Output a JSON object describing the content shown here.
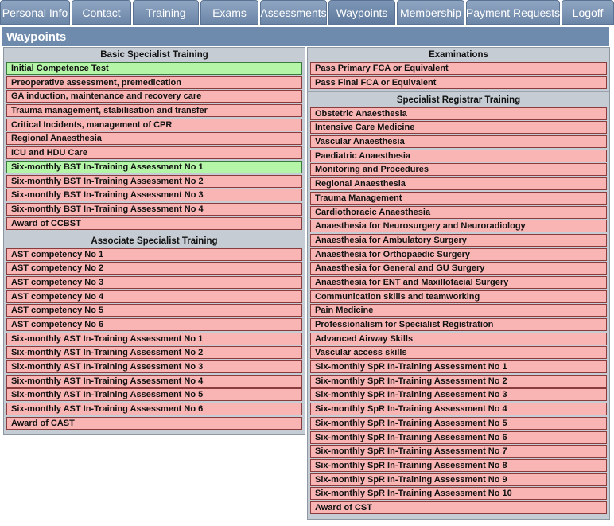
{
  "nav": {
    "tabs": [
      {
        "label": "Personal Info",
        "width": 88,
        "name": "tab-personal-info"
      },
      {
        "label": "Contact",
        "width": 75,
        "name": "tab-contact"
      },
      {
        "label": "Training",
        "width": 83,
        "name": "tab-training"
      },
      {
        "label": "Exams",
        "width": 73,
        "name": "tab-exams"
      },
      {
        "label": "Assessments",
        "width": 84,
        "name": "tab-assessments"
      },
      {
        "label": "Waypoints",
        "width": 84,
        "name": "tab-waypoints",
        "active": true
      },
      {
        "label": "Membership",
        "width": 85,
        "name": "tab-membership"
      },
      {
        "label": "Payment Requests",
        "width": 118,
        "name": "tab-payment-requests"
      },
      {
        "label": "Logoff",
        "width": 66,
        "name": "tab-logoff"
      }
    ]
  },
  "page_title": "Waypoints",
  "left": {
    "sections": [
      {
        "title": "Basic Specialist Training",
        "items": [
          {
            "label": "Initial Competence Test",
            "done": true
          },
          {
            "label": "Preoperative assessment, premedication",
            "done": false
          },
          {
            "label": "GA induction, maintenance and recovery care",
            "done": false
          },
          {
            "label": "Trauma management, stabilisation and transfer",
            "done": false
          },
          {
            "label": "Critical Incidents, management of CPR",
            "done": false
          },
          {
            "label": "Regional Anaesthesia",
            "done": false
          },
          {
            "label": "ICU and HDU Care",
            "done": false
          },
          {
            "label": "Six-monthly BST In-Training Assessment No 1",
            "done": true
          },
          {
            "label": "Six-monthly BST In-Training Assessment No 2",
            "done": false
          },
          {
            "label": "Six-monthly BST In-Training Assessment No 3",
            "done": false
          },
          {
            "label": "Six-monthly BST In-Training Assessment No 4",
            "done": false
          },
          {
            "label": "Award of CCBST",
            "done": false
          }
        ]
      },
      {
        "title": "Associate Specialist Training",
        "items": [
          {
            "label": "AST competency No 1",
            "done": false
          },
          {
            "label": "AST competency No 2",
            "done": false
          },
          {
            "label": "AST competency No 3",
            "done": false
          },
          {
            "label": "AST competency No 4",
            "done": false
          },
          {
            "label": "AST competency No 5",
            "done": false
          },
          {
            "label": "AST competency No 6",
            "done": false
          },
          {
            "label": "Six-monthly AST In-Training Assessment No 1",
            "done": false
          },
          {
            "label": "Six-monthly AST In-Training Assessment No 2",
            "done": false
          },
          {
            "label": "Six-monthly AST In-Training Assessment No 3",
            "done": false
          },
          {
            "label": "Six-monthly AST In-Training Assessment No 4",
            "done": false
          },
          {
            "label": "Six-monthly AST In-Training Assessment No 5",
            "done": false
          },
          {
            "label": "Six-monthly AST In-Training Assessment No 6",
            "done": false
          },
          {
            "label": "Award of CAST",
            "done": false
          }
        ]
      }
    ]
  },
  "right": {
    "sections": [
      {
        "title": "Examinations",
        "items": [
          {
            "label": "Pass Primary FCA or Equivalent",
            "done": false
          },
          {
            "label": "Pass Final FCA or Equivalent",
            "done": false
          }
        ]
      },
      {
        "title": "Specialist Registrar Training",
        "items": [
          {
            "label": "Obstetric Anaesthesia",
            "done": false
          },
          {
            "label": "Intensive Care Medicine",
            "done": false
          },
          {
            "label": "Vascular Anaesthesia",
            "done": false
          },
          {
            "label": "Paediatric Anaesthesia",
            "done": false
          },
          {
            "label": "Monitoring and Procedures",
            "done": false
          },
          {
            "label": "Regional Anaesthesia",
            "done": false
          },
          {
            "label": "Trauma Management",
            "done": false
          },
          {
            "label": "Cardiothoracic Anaesthesia",
            "done": false
          },
          {
            "label": "Anaesthesia for Neurosurgery and Neuroradiology",
            "done": false
          },
          {
            "label": "Anaesthesia for Ambulatory Surgery",
            "done": false
          },
          {
            "label": "Anaesthesia for Orthopaedic Surgery",
            "done": false
          },
          {
            "label": "Anaesthesia for General and GU Surgery",
            "done": false
          },
          {
            "label": "Anaesthesia for ENT and Maxillofacial Surgery",
            "done": false
          },
          {
            "label": "Communication skills and teamworking",
            "done": false
          },
          {
            "label": "Pain Medicine",
            "done": false
          },
          {
            "label": "Professionalism for Specialist Registration",
            "done": false
          },
          {
            "label": "Advanced Airway Skills",
            "done": false
          },
          {
            "label": "Vascular access skills",
            "done": false
          },
          {
            "label": "Six-monthly SpR In-Training Assessment No 1",
            "done": false
          },
          {
            "label": "Six-monthly SpR In-Training Assessment No 2",
            "done": false
          },
          {
            "label": "Six-monthly SpR In-Training Assessment No 3",
            "done": false
          },
          {
            "label": "Six-monthly SpR In-Training Assessment No 4",
            "done": false
          },
          {
            "label": "Six-monthly SpR In-Training Assessment No 5",
            "done": false
          },
          {
            "label": "Six-monthly SpR In-Training Assessment No 6",
            "done": false
          },
          {
            "label": "Six-monthly SpR In-Training Assessment No 7",
            "done": false
          },
          {
            "label": "Six-monthly SpR In-Training Assessment No 8",
            "done": false
          },
          {
            "label": "Six-monthly SpR In-Training Assessment No 9",
            "done": false
          },
          {
            "label": "Six-monthly SpR In-Training Assessment No 10",
            "done": false
          },
          {
            "label": "Award of CST",
            "done": false
          }
        ]
      }
    ]
  },
  "colors": {
    "pending": "#f9b4b4",
    "complete": "#b4f5a8",
    "nav": "#6e8aac"
  }
}
